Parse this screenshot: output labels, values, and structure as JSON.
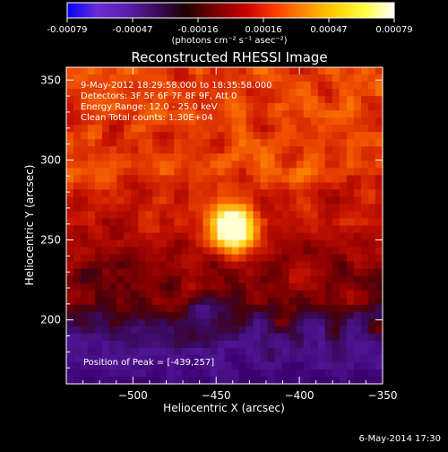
{
  "chart_data": {
    "type": "heatmap",
    "title": "Reconstructed RHESSI Image",
    "xlabel": "Heliocentric X (arcsec)",
    "ylabel": "Heliocentric Y (arcsec)",
    "xlim": [
      -540,
      -350
    ],
    "ylim": [
      160,
      358
    ],
    "xticks": [
      -500,
      -450,
      -400,
      -350
    ],
    "yticks": [
      200,
      250,
      300,
      350
    ],
    "colorbar": {
      "min": -0.00079,
      "max": 0.00079,
      "ticks": [
        "-0.00079",
        "-0.00047",
        "-0.00016",
        "0.00016",
        "0.00047",
        "0.00079"
      ],
      "units": "(photons cm⁻² s⁻¹ asec⁻²)",
      "stops": [
        "#0000ff",
        "#6a2bd6",
        "#5a1fae",
        "#3a0c5c",
        "#200000",
        "#7a0000",
        "#c80000",
        "#ff3c00",
        "#ff8c00",
        "#ffd000",
        "#ffff40",
        "#ffffff"
      ]
    },
    "annotations": [
      "9-May-2012 18:29:58.000 to 18:35:58.000",
      "Detectors: 3F 5F 6F 7F 8F 9F, Att 0",
      "Energy Range: 12.0 - 25.0 keV",
      "Clean    Total counts: 1.30E+04"
    ],
    "peak_label": "Position of Peak = [-439,257]",
    "peak": [
      -439,
      257
    ],
    "grid": false
  },
  "footer": {
    "timestamp": "6-May-2014 17:30"
  }
}
